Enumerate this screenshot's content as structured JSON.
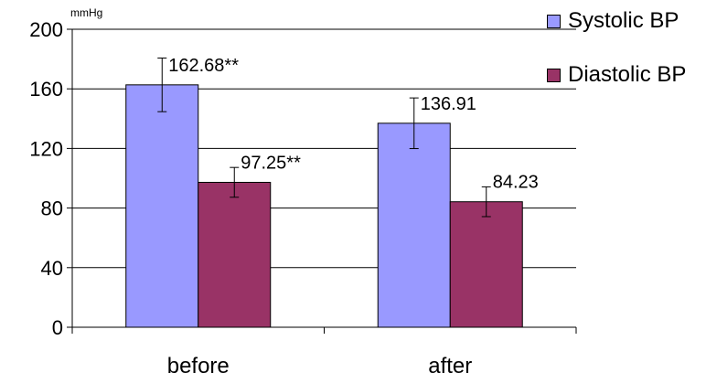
{
  "chart_data": {
    "type": "bar",
    "unit": "mmHg",
    "categories": [
      "before",
      "after"
    ],
    "series": [
      {
        "name": "Systolic BP",
        "color": "#9999FF",
        "values": [
          162.68,
          136.91
        ],
        "error": [
          18,
          17
        ],
        "labels": [
          "162.68**",
          "136.91"
        ]
      },
      {
        "name": "Diastolic BP",
        "color": "#993366",
        "values": [
          97.25,
          84.23
        ],
        "error": [
          10,
          10
        ],
        "labels": [
          "97.25**",
          "84.23"
        ]
      }
    ],
    "yticks": [
      "0",
      "40",
      "80",
      "120",
      "160",
      "200"
    ],
    "ylim": [
      0,
      200
    ],
    "grid": true,
    "legend": "right"
  }
}
